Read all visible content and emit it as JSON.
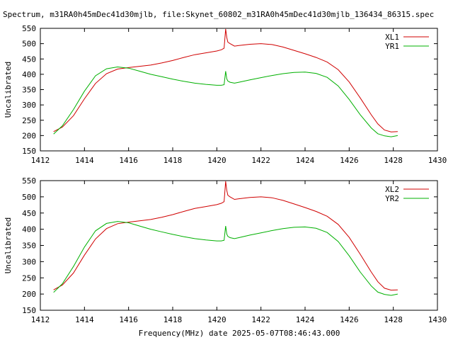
{
  "title": "Spectrum, m31RA0h45mDec41d30mjlb, file:Skynet_60802_m31RA0h45mDec41d30mjlb_136434_86315.spec",
  "xlabel": "Frequency(MHz) date 2025-05-07T08:46:43.000",
  "chart_data": [
    {
      "type": "line",
      "ylabel": "Uncalibrated",
      "xlim": [
        1412,
        1430
      ],
      "ylim": [
        150,
        550
      ],
      "xticks": [
        1412,
        1414,
        1416,
        1418,
        1420,
        1422,
        1424,
        1426,
        1428,
        1430
      ],
      "yticks": [
        150,
        200,
        250,
        300,
        350,
        400,
        450,
        500,
        550
      ],
      "legend_position": "top-right",
      "grid": false,
      "series": [
        {
          "name": "XL1",
          "color": "#d00000",
          "x": [
            1412.6,
            1413.0,
            1413.5,
            1414.0,
            1414.5,
            1415.0,
            1415.5,
            1416.0,
            1416.5,
            1417.0,
            1417.5,
            1418.0,
            1418.5,
            1419.0,
            1419.5,
            1420.0,
            1420.2,
            1420.33,
            1420.4,
            1420.45,
            1420.5,
            1420.6,
            1420.8,
            1421.0,
            1421.5,
            1422.0,
            1422.5,
            1423.0,
            1423.5,
            1424.0,
            1424.5,
            1425.0,
            1425.5,
            1426.0,
            1426.5,
            1427.0,
            1427.3,
            1427.6,
            1427.9,
            1428.2
          ],
          "y": [
            213,
            228,
            265,
            320,
            370,
            402,
            417,
            422,
            426,
            430,
            437,
            445,
            455,
            464,
            470,
            476,
            480,
            485,
            548,
            520,
            505,
            500,
            492,
            494,
            498,
            500,
            497,
            489,
            478,
            467,
            455,
            440,
            415,
            375,
            323,
            268,
            238,
            218,
            212,
            213
          ]
        },
        {
          "name": "YR1",
          "color": "#00b000",
          "x": [
            1412.6,
            1413.0,
            1413.5,
            1414.0,
            1414.5,
            1415.0,
            1415.5,
            1416.0,
            1416.5,
            1417.0,
            1417.5,
            1418.0,
            1418.5,
            1419.0,
            1419.5,
            1420.0,
            1420.2,
            1420.33,
            1420.4,
            1420.45,
            1420.5,
            1420.6,
            1420.8,
            1421.0,
            1421.5,
            1422.0,
            1422.5,
            1423.0,
            1423.5,
            1424.0,
            1424.5,
            1425.0,
            1425.5,
            1426.0,
            1426.5,
            1427.0,
            1427.3,
            1427.6,
            1427.9,
            1428.2
          ],
          "y": [
            205,
            232,
            285,
            345,
            395,
            418,
            424,
            420,
            410,
            400,
            392,
            384,
            377,
            371,
            367,
            364,
            364,
            366,
            410,
            385,
            378,
            374,
            371,
            374,
            382,
            389,
            396,
            402,
            406,
            407,
            403,
            390,
            362,
            318,
            268,
            225,
            206,
            199,
            196,
            200
          ]
        }
      ]
    },
    {
      "type": "line",
      "ylabel": "Uncalibrated",
      "xlim": [
        1412,
        1430
      ],
      "ylim": [
        150,
        550
      ],
      "xticks": [
        1412,
        1414,
        1416,
        1418,
        1420,
        1422,
        1424,
        1426,
        1428,
        1430
      ],
      "yticks": [
        150,
        200,
        250,
        300,
        350,
        400,
        450,
        500,
        550
      ],
      "legend_position": "top-right",
      "grid": false,
      "series": [
        {
          "name": "XL2",
          "color": "#d00000",
          "x": [
            1412.6,
            1413.0,
            1413.5,
            1414.0,
            1414.5,
            1415.0,
            1415.5,
            1416.0,
            1416.5,
            1417.0,
            1417.5,
            1418.0,
            1418.5,
            1419.0,
            1419.5,
            1420.0,
            1420.2,
            1420.33,
            1420.4,
            1420.45,
            1420.5,
            1420.6,
            1420.8,
            1421.0,
            1421.5,
            1422.0,
            1422.5,
            1423.0,
            1423.5,
            1424.0,
            1424.5,
            1425.0,
            1425.5,
            1426.0,
            1426.5,
            1427.0,
            1427.3,
            1427.6,
            1427.9,
            1428.2
          ],
          "y": [
            213,
            228,
            265,
            320,
            370,
            402,
            417,
            422,
            426,
            430,
            437,
            445,
            455,
            464,
            470,
            476,
            480,
            485,
            548,
            520,
            505,
            500,
            492,
            494,
            498,
            500,
            497,
            489,
            478,
            467,
            455,
            440,
            415,
            375,
            323,
            268,
            238,
            218,
            212,
            213
          ]
        },
        {
          "name": "YR2",
          "color": "#00b000",
          "x": [
            1412.6,
            1413.0,
            1413.5,
            1414.0,
            1414.5,
            1415.0,
            1415.5,
            1416.0,
            1416.5,
            1417.0,
            1417.5,
            1418.0,
            1418.5,
            1419.0,
            1419.5,
            1420.0,
            1420.2,
            1420.33,
            1420.4,
            1420.45,
            1420.5,
            1420.6,
            1420.8,
            1421.0,
            1421.5,
            1422.0,
            1422.5,
            1423.0,
            1423.5,
            1424.0,
            1424.5,
            1425.0,
            1425.5,
            1426.0,
            1426.5,
            1427.0,
            1427.3,
            1427.6,
            1427.9,
            1428.2
          ],
          "y": [
            205,
            232,
            285,
            345,
            395,
            418,
            424,
            420,
            410,
            400,
            392,
            384,
            377,
            371,
            367,
            364,
            364,
            366,
            410,
            385,
            378,
            374,
            371,
            374,
            382,
            389,
            396,
            402,
            406,
            407,
            403,
            390,
            362,
            318,
            268,
            225,
            206,
            199,
            196,
            200
          ]
        }
      ]
    }
  ]
}
